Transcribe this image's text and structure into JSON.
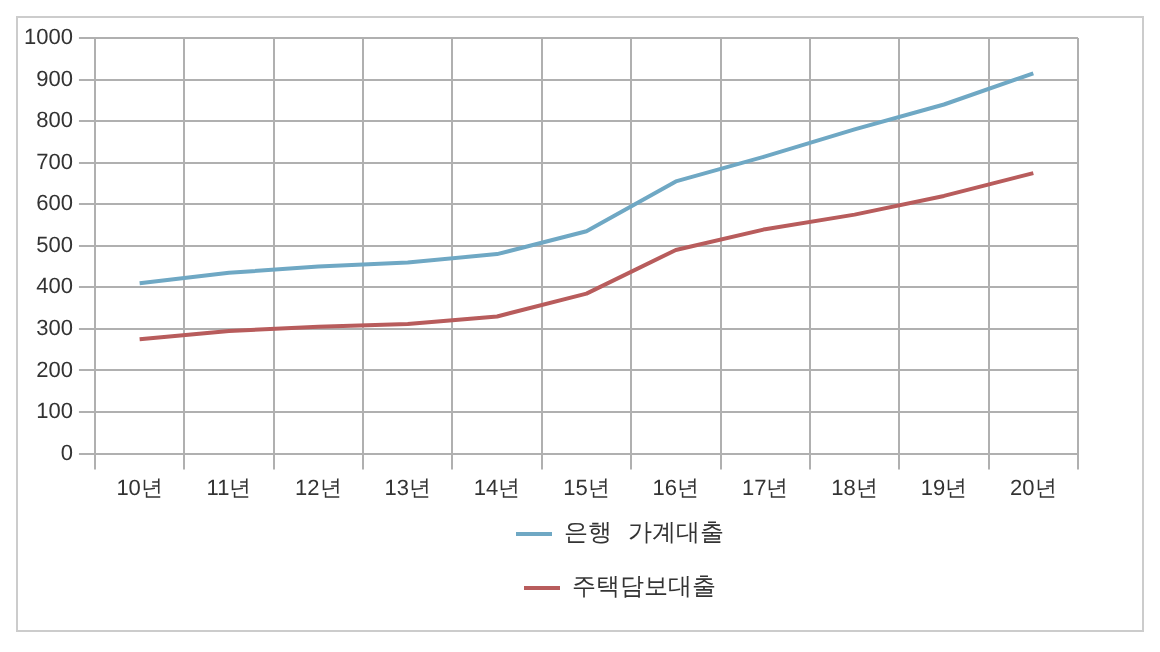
{
  "chart_data": {
    "type": "line",
    "categories": [
      "10년",
      "11년",
      "12년",
      "13년",
      "14년",
      "15년",
      "16년",
      "17년",
      "18년",
      "19년",
      "20년"
    ],
    "series": [
      {
        "name": "은행  가계대출",
        "color": "#6fa8c4",
        "values": [
          410,
          435,
          450,
          460,
          480,
          535,
          655,
          715,
          780,
          840,
          915
        ]
      },
      {
        "name": "주택담보대출",
        "color": "#b85c5c",
        "values": [
          275,
          295,
          305,
          312,
          330,
          385,
          490,
          540,
          575,
          620,
          675
        ]
      }
    ],
    "ylim": [
      0,
      1000
    ],
    "yticks": [
      0,
      100,
      200,
      300,
      400,
      500,
      600,
      700,
      800,
      900,
      1000
    ],
    "grid": true,
    "legend": "bottom",
    "marker": "none",
    "line_style": "solid"
  }
}
